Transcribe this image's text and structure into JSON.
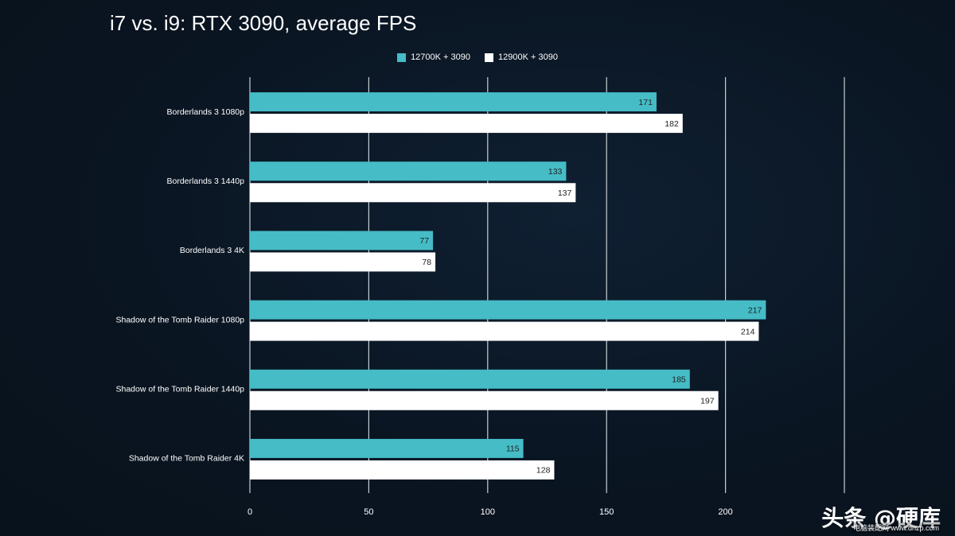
{
  "chart_data": {
    "type": "bar",
    "orientation": "horizontal",
    "title": "i7 vs. i9: RTX 3090, average FPS",
    "categories": [
      "Borderlands 3 1080p",
      "Borderlands 3 1440p",
      "Borderlands 3 4K",
      "Shadow of the Tomb Raider 1080p",
      "Shadow of the Tomb Raider 1440p",
      "Shadow of the Tomb Raider 4K"
    ],
    "series": [
      {
        "name": "12700K + 3090",
        "color": "#45bcc6",
        "values": [
          171,
          133,
          77,
          217,
          185,
          115
        ]
      },
      {
        "name": "12900K + 3090",
        "color": "#ffffff",
        "values": [
          182,
          137,
          78,
          214,
          197,
          128
        ]
      }
    ],
    "xlim": [
      0,
      250
    ],
    "xticks": [
      0,
      50,
      100,
      150,
      200
    ],
    "grid": true,
    "legend": "top-center",
    "xlabel": "",
    "ylabel": ""
  },
  "watermark": {
    "main": "头条 @硬库",
    "sub": "电脑装配网 www.dnzp.com"
  }
}
